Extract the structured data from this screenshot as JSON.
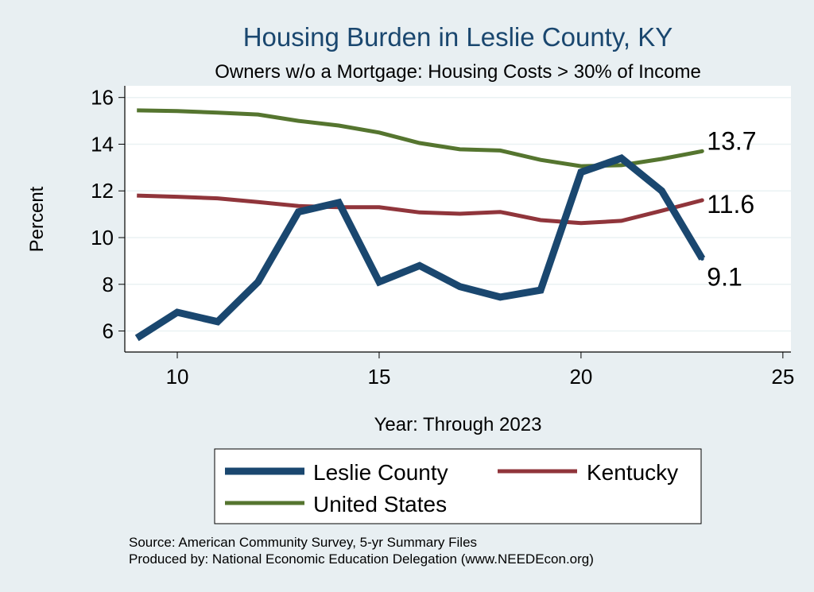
{
  "chart_data": {
    "type": "line",
    "title": "Housing Burden in Leslie County, KY",
    "subtitle": "Owners w/o a Mortgage: Housing Costs > 30% of Income",
    "xlabel": "Year: Through 2023",
    "ylabel": "Percent",
    "xlim": [
      8.7,
      25.2
    ],
    "ylim": [
      5.1,
      16.5
    ],
    "xticks": [
      10,
      15,
      20,
      25
    ],
    "yticks": [
      6,
      8,
      10,
      12,
      14,
      16
    ],
    "x": [
      9,
      10,
      11,
      12,
      13,
      14,
      15,
      16,
      17,
      18,
      19,
      20,
      21,
      22,
      23
    ],
    "series": [
      {
        "name": "Leslie County",
        "color": "#1a476f",
        "values": [
          5.7,
          6.8,
          6.4,
          8.1,
          11.1,
          11.5,
          8.1,
          8.8,
          7.9,
          7.45,
          7.75,
          12.8,
          13.4,
          12.0,
          9.1
        ],
        "end_label": "9.1"
      },
      {
        "name": "Kentucky",
        "color": "#90353b",
        "values": [
          11.8,
          11.75,
          11.68,
          11.52,
          11.35,
          11.3,
          11.3,
          11.08,
          11.02,
          11.1,
          10.75,
          10.62,
          10.72,
          11.15,
          11.6
        ],
        "end_label": "11.6"
      },
      {
        "name": "United States",
        "color": "#55752f",
        "values": [
          15.45,
          15.42,
          15.35,
          15.27,
          15.0,
          14.8,
          14.5,
          14.05,
          13.78,
          13.73,
          13.33,
          13.06,
          13.1,
          13.37,
          13.7
        ],
        "end_label": "13.7"
      }
    ],
    "legend": {
      "position": "bottom",
      "entries": [
        "Leslie County",
        "Kentucky",
        "United States"
      ]
    },
    "grid": true
  },
  "footer": {
    "source": "Source: American Community Survey, 5-yr Summary Files",
    "produced": "Produced by: National Economic Education Delegation (www.NEEDEcon.org)"
  }
}
